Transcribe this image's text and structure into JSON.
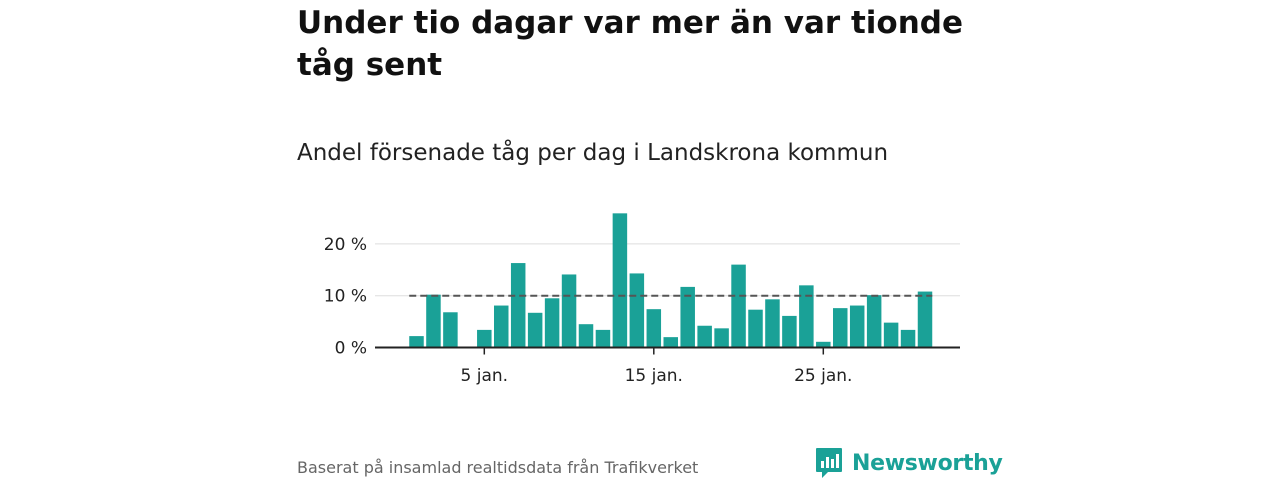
{
  "title": "Under tio dagar var mer än var tionde tåg sent",
  "subtitle": "Andel försenade tåg per dag i Landskrona kommun",
  "footer": {
    "source": "Baserat på insamlad realtidsdata från Trafikverket",
    "brand": "Newsworthy"
  },
  "colors": {
    "bar": "#1aa197",
    "grid": "#dddddd",
    "reference_line": "#555555",
    "axis": "#222222",
    "brand": "#1aa197"
  },
  "chart_data": {
    "type": "bar",
    "x": [
      1,
      2,
      3,
      4,
      5,
      6,
      7,
      8,
      9,
      10,
      11,
      12,
      13,
      14,
      15,
      16,
      17,
      18,
      19,
      20,
      21,
      22,
      23,
      24,
      25,
      26,
      27,
      28,
      29,
      30,
      31
    ],
    "values": [
      2.2,
      10.2,
      6.8,
      null,
      3.4,
      8.1,
      16.3,
      6.7,
      9.5,
      14.1,
      4.5,
      3.4,
      25.9,
      14.3,
      7.4,
      2.0,
      11.7,
      4.2,
      3.7,
      16.0,
      7.3,
      9.3,
      6.1,
      12.0,
      1.1,
      7.6,
      8.1,
      10.1,
      4.8,
      3.4,
      10.8
    ],
    "x_ticks": [
      {
        "x": 5,
        "label": "5 jan."
      },
      {
        "x": 15,
        "label": "15 jan."
      },
      {
        "x": 25,
        "label": "25 jan."
      }
    ],
    "y_ticks": [
      {
        "y": 0,
        "label": "0 %"
      },
      {
        "y": 10,
        "label": "10 %"
      },
      {
        "y": 20,
        "label": "20 %"
      }
    ],
    "ylim": [
      0,
      27
    ],
    "reference_line": 10,
    "grid": true,
    "xlabel": "",
    "ylabel": ""
  }
}
